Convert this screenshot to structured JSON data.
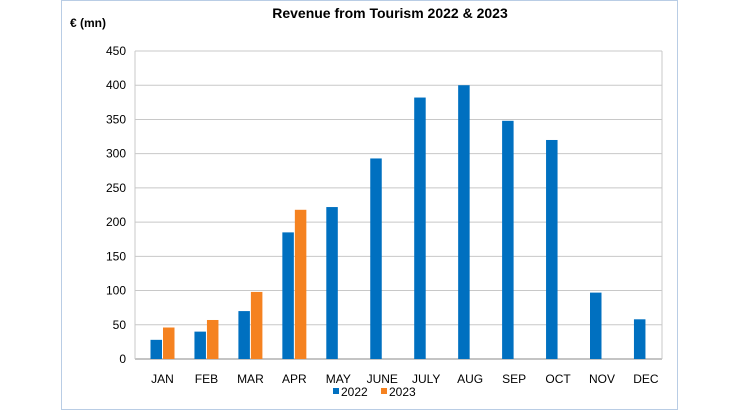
{
  "chart_data": {
    "type": "bar",
    "title": "Revenue from Tourism 2022 & 2023",
    "ylabel": "€ (mn)",
    "xlabel": "",
    "categories": [
      "JAN",
      "FEB",
      "MAR",
      "APR",
      "MAY",
      "JUNE",
      "JULY",
      "AUG",
      "SEP",
      "OCT",
      "NOV",
      "DEC"
    ],
    "series": [
      {
        "name": "2022",
        "color": "#0070c0",
        "values": [
          28,
          40,
          70,
          185,
          222,
          293,
          382,
          400,
          348,
          320,
          97,
          58
        ]
      },
      {
        "name": "2023",
        "color": "#f58220",
        "values": [
          46,
          57,
          98,
          218,
          null,
          null,
          null,
          null,
          null,
          null,
          null,
          null
        ]
      }
    ],
    "ylim": [
      0,
      450
    ],
    "yticks": [
      0,
      50,
      100,
      150,
      200,
      250,
      300,
      350,
      400,
      450
    ],
    "grid": true,
    "legend_position": "bottom"
  }
}
